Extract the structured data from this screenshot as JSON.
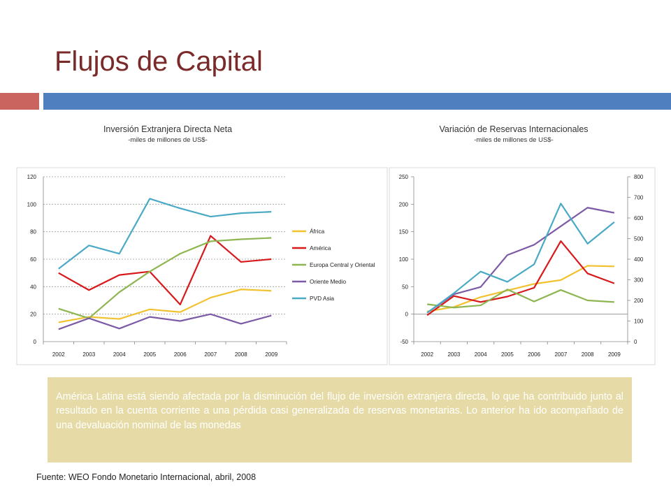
{
  "page": {
    "title": "Flujos de Capital",
    "note": "América Latina está siendo afectada por la disminución del flujo de inversión extranjera directa, lo que ha contribuido junto al resultado en la cuenta corriente a una pérdida casi generalizada de reservas monetarias.   Lo anterior ha ido acompañado de una devaluación nominal de las monedas",
    "source": "Fuente: WEO Fondo Monetario Internacional, abril, 2008",
    "colors": {
      "title": "#7b2a2a",
      "accent_bar_left": "#c9645e",
      "accent_bar_right": "#4f7fbe",
      "note_background": "#e6dba6"
    }
  },
  "chart_data": [
    {
      "type": "line",
      "title": "Inversión Extranjera Directa Neta",
      "subtitle": "-miles de millones de US$-",
      "x": [
        "2002",
        "2003",
        "2004",
        "2005",
        "2006",
        "2007",
        "2008",
        "2009"
      ],
      "ylim": [
        0,
        120
      ],
      "yticks": [
        0,
        20,
        40,
        60,
        80,
        100,
        120
      ],
      "grid": true,
      "legend": "right",
      "series": [
        {
          "name": "África",
          "color": "#f2c12e",
          "values": [
            14,
            18,
            16.5,
            23.5,
            21.5,
            32,
            38,
            37
          ]
        },
        {
          "name": "América",
          "color": "#d7191c",
          "values": [
            50,
            37.5,
            48.5,
            51,
            27,
            77,
            58,
            60
          ]
        },
        {
          "name": "Europa Central y Oriental",
          "color": "#8db650",
          "values": [
            24,
            17,
            36,
            51,
            64,
            73,
            74.5,
            75.5
          ]
        },
        {
          "name": "Oriente Medio",
          "color": "#7d5aa6",
          "values": [
            9,
            17,
            9.5,
            18,
            15,
            20,
            13,
            19
          ]
        },
        {
          "name": "PVD Asia",
          "color": "#4aaac5",
          "values": [
            53,
            70,
            64,
            104,
            97,
            91,
            93.5,
            94.5
          ]
        }
      ]
    },
    {
      "type": "line",
      "title": "Variación de Reservas Internacionales",
      "subtitle": "-miles de millones de US$-",
      "x": [
        "2002",
        "2003",
        "2004",
        "2005",
        "2006",
        "2007",
        "2008",
        "2009"
      ],
      "ylim": [
        -50,
        250
      ],
      "yticks": [
        -50,
        0,
        50,
        100,
        150,
        200,
        250
      ],
      "y2lim": [
        0,
        800
      ],
      "y2ticks": [
        0,
        100,
        200,
        300,
        400,
        500,
        600,
        700,
        800
      ],
      "grid": false,
      "legend": "none",
      "series": [
        {
          "color": "#f2c12e",
          "axis": "left",
          "values": [
            5,
            13,
            31,
            43,
            55,
            62,
            88,
            87
          ]
        },
        {
          "color": "#d7191c",
          "axis": "left",
          "values": [
            -2,
            33,
            22,
            32,
            48,
            133,
            74,
            56
          ]
        },
        {
          "color": "#8db650",
          "axis": "left",
          "values": [
            18,
            12,
            16,
            45,
            23,
            44,
            25,
            22
          ]
        },
        {
          "color": "#7d5aa6",
          "axis": "right",
          "values": [
            140,
            230,
            265,
            420,
            470,
            560,
            650,
            625
          ]
        },
        {
          "color": "#4aaac5",
          "axis": "right",
          "values": [
            140,
            235,
            340,
            290,
            375,
            670,
            475,
            580
          ]
        }
      ]
    }
  ]
}
